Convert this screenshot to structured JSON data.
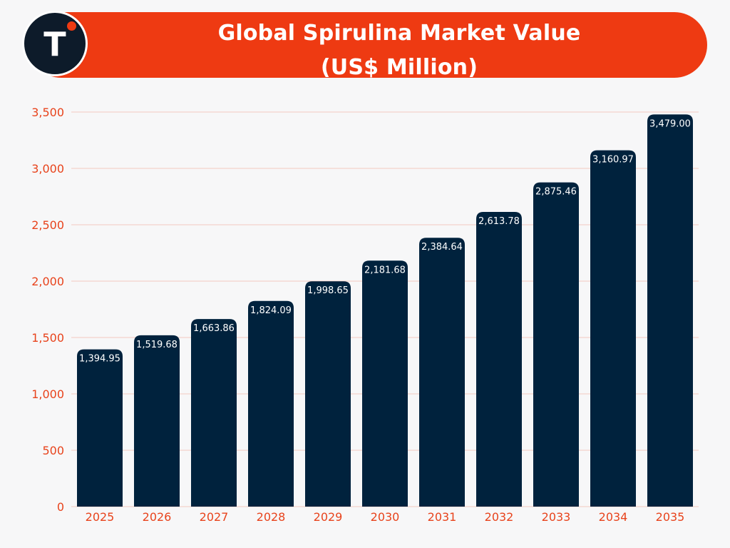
{
  "header": {
    "title_line1": "Global Spirulina Market Value",
    "title_line2": "(US$ Million)",
    "logo_letter": "T"
  },
  "colors": {
    "banner": "#ee3a12",
    "bar": "#00223d",
    "tick_label": "#e8431c",
    "grid": "#f3c9c0",
    "logo_bg": "#0d1b2a"
  },
  "chart_data": {
    "type": "bar",
    "title": "Global Spirulina Market Value (US$ Million)",
    "xlabel": "",
    "ylabel": "",
    "categories": [
      "2025",
      "2026",
      "2027",
      "2028",
      "2029",
      "2030",
      "2031",
      "2032",
      "2033",
      "2034",
      "2035"
    ],
    "values": [
      1394.95,
      1519.68,
      1663.86,
      1824.09,
      1998.65,
      2181.68,
      2384.64,
      2613.78,
      2875.46,
      3160.97,
      3479.0
    ],
    "value_labels": [
      "1,394.95",
      "1,519.68",
      "1,663.86",
      "1,824.09",
      "1,998.65",
      "2,181.68",
      "2,384.64",
      "2,613.78",
      "2,875.46",
      "3,160.97",
      "3,479.00"
    ],
    "ylim": [
      0,
      3500
    ],
    "yticks": [
      0,
      500,
      1000,
      1500,
      2000,
      2500,
      3000,
      3500
    ],
    "ytick_labels": [
      "0",
      "500",
      "1,000",
      "1,500",
      "2,000",
      "2,500",
      "3,000",
      "3,500"
    ],
    "grid": true,
    "legend": "none"
  }
}
